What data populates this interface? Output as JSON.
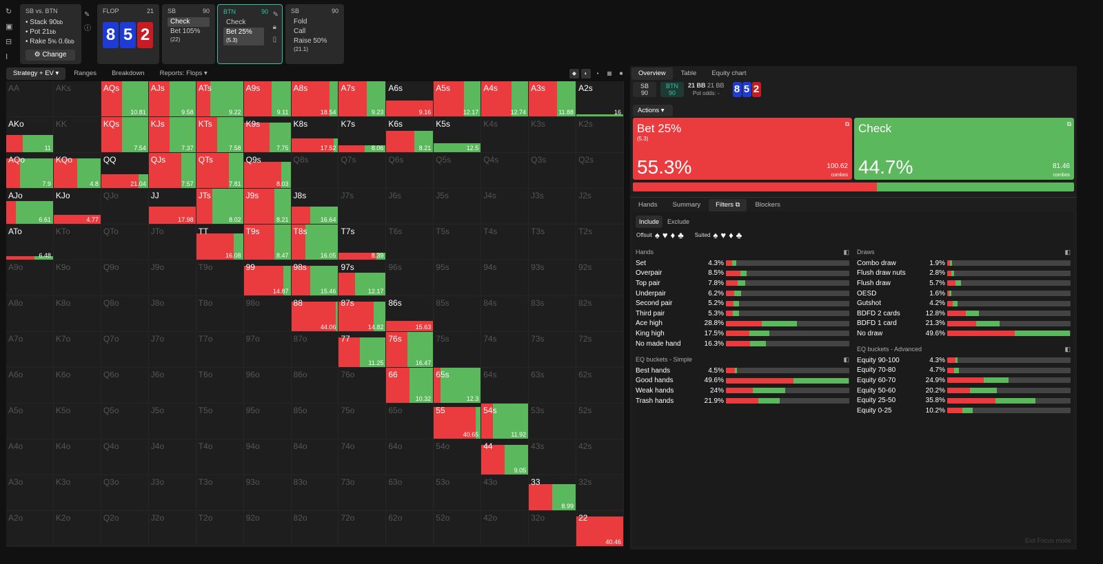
{
  "nav": {
    "spot": "SB vs. BTN",
    "stack": "Stack 90",
    "stack_u": "bb",
    "pot": "Pot 21",
    "pot_u": "bb",
    "rake": "Rake 5",
    "rake_u": "%",
    "rake_x": " 0.6",
    "rake_xu": "bb",
    "change": "Change"
  },
  "flop": {
    "label": "FLOP",
    "num": "21",
    "cards": [
      "8",
      "5",
      "2"
    ]
  },
  "sb1": {
    "label": "SB",
    "num": "90",
    "opts": [
      "Check",
      "Bet 105%"
    ],
    "opt2x": "(22)"
  },
  "btn": {
    "label": "BTN",
    "num": "90",
    "opts": [
      "Check",
      "Bet 25%"
    ],
    "opt2x": "(5.3)"
  },
  "sb2": {
    "label": "SB",
    "num": "90",
    "opts": [
      "Fold",
      "Call",
      "Raise 50%"
    ],
    "opt3x": "(21.1)"
  },
  "ltabs": [
    "Strategy + EV",
    "Ranges",
    "Breakdown",
    "Reports: Flops"
  ],
  "rtabs": [
    "Overview",
    "Table",
    "Equity chart"
  ],
  "info": {
    "sb": "SB",
    "sbv": "90",
    "btn": "BTN",
    "btnv": "90",
    "bb1": "21 BB",
    "bb2": "21 BB",
    "potodds": "Pot odds:",
    "potv": "-"
  },
  "actions_label": "Actions",
  "bet": {
    "name": "Bet 25%",
    "sub": "(5.3)",
    "pct": "55.3%",
    "combos": "100.62",
    "cl": "combos"
  },
  "chk": {
    "name": "Check",
    "pct": "44.7%",
    "combos": "81.46",
    "cl": "combos"
  },
  "ftabs": [
    "Hands",
    "Summary",
    "Filters",
    "Blockers"
  ],
  "incl": [
    "Include",
    "Exclude"
  ],
  "offsuit": "Offsuit",
  "suited": "Suited",
  "suits": [
    "♠",
    "♥",
    "♦",
    "♣"
  ],
  "hands_h": "Hands",
  "draws_h": "Draws",
  "eqs_h": "EQ buckets - Simple",
  "eqa_h": "EQ buckets - Advanced",
  "hands": [
    [
      "Set",
      "4.3%",
      4.3,
      60
    ],
    [
      "Overpair",
      "8.5%",
      8.5,
      70
    ],
    [
      "Top pair",
      "7.8%",
      7.8,
      60
    ],
    [
      "Underpair",
      "6.2%",
      6.2,
      55
    ],
    [
      "Second pair",
      "5.2%",
      5.2,
      60
    ],
    [
      "Third pair",
      "5.3%",
      5.3,
      55
    ],
    [
      "Ace high",
      "28.8%",
      28.8,
      50
    ],
    [
      "King high",
      "17.5%",
      17.5,
      55
    ],
    [
      "No made hand",
      "16.3%",
      16.3,
      60
    ]
  ],
  "draws": [
    [
      "Combo draw",
      "1.9%",
      1.9,
      60
    ],
    [
      "Flush draw nuts",
      "2.8%",
      2.8,
      55
    ],
    [
      "Flush draw",
      "5.7%",
      5.7,
      60
    ],
    [
      "OESD",
      "1.6%",
      1.6,
      60
    ],
    [
      "Gutshot",
      "4.2%",
      4.2,
      50
    ],
    [
      "BDFD 2 cards",
      "12.8%",
      12.8,
      60
    ],
    [
      "BDFD 1 card",
      "21.3%",
      21.3,
      55
    ],
    [
      "No draw",
      "49.6%",
      49.6,
      55
    ]
  ],
  "eqs": [
    [
      "Best hands",
      "4.5%",
      4.5,
      80
    ],
    [
      "Good hands",
      "49.6%",
      49.6,
      55
    ],
    [
      "Weak hands",
      "24%",
      24,
      45
    ],
    [
      "Trash hands",
      "21.9%",
      21.9,
      60
    ]
  ],
  "eqa": [
    [
      "Equity 90-100",
      "4.3%",
      4.3,
      80
    ],
    [
      "Equity 70-80",
      "4.7%",
      4.7,
      60
    ],
    [
      "Equity 60-70",
      "24.9%",
      24.9,
      60
    ],
    [
      "Equity 50-60",
      "20.2%",
      20.2,
      45
    ],
    [
      "Equity 25-50",
      "35.8%",
      35.8,
      55
    ],
    [
      "Equity 0-25",
      "10.2%",
      10.2,
      60
    ]
  ],
  "exit": "Exit Focus mode",
  "grid": [
    [
      "AA",
      0,
      0,
      ""
    ],
    [
      "AKs",
      0,
      0,
      ""
    ],
    [
      "AQs",
      1,
      0.45,
      "10.81"
    ],
    [
      "AJs",
      1,
      0.45,
      "9.58"
    ],
    [
      "ATs",
      1,
      0.3,
      "9.22"
    ],
    [
      "A9s",
      1,
      0.6,
      "9.11"
    ],
    [
      "A8s",
      1,
      0.82,
      "18.54"
    ],
    [
      "A7s",
      1,
      0.6,
      "9.23"
    ],
    [
      "A6s",
      0.45,
      1,
      "9.16"
    ],
    [
      "A5s",
      1,
      0.65,
      "12.17"
    ],
    [
      "A4s",
      1,
      0.65,
      "12.74"
    ],
    [
      "A3s",
      1,
      0.6,
      "11.88"
    ],
    [
      "A2s",
      0.05,
      0,
      "16"
    ],
    [
      "AKo",
      0.5,
      0.35,
      "11"
    ],
    [
      "KK",
      0,
      0,
      ""
    ],
    [
      "KQs",
      1,
      0.45,
      "7.54"
    ],
    [
      "KJs",
      1,
      0.45,
      "7.37"
    ],
    [
      "KTs",
      1,
      0.45,
      "7.58"
    ],
    [
      "K9s",
      0.85,
      0.55,
      "7.75"
    ],
    [
      "K8s",
      0.4,
      0.9,
      "17.52"
    ],
    [
      "K7s",
      0.2,
      0.55,
      "8.06"
    ],
    [
      "K6s",
      0.6,
      0.6,
      "8.21"
    ],
    [
      "K5s",
      0.25,
      0,
      "12.5"
    ],
    [
      "K4s",
      0,
      0,
      ""
    ],
    [
      "K3s",
      0,
      0,
      ""
    ],
    [
      "K2s",
      0,
      0,
      ""
    ],
    [
      "AQo",
      0.85,
      0.3,
      "7.9"
    ],
    [
      "KQo",
      0.85,
      0.5,
      "4.8"
    ],
    [
      "QQ",
      0.4,
      0.8,
      "21.04"
    ],
    [
      "QJs",
      1,
      0.7,
      "7.57"
    ],
    [
      "QTs",
      1,
      0.7,
      "7.81"
    ],
    [
      "Q9s",
      0.75,
      0.8,
      "8.03"
    ],
    [
      "Q8s",
      0,
      0,
      ""
    ],
    [
      "Q7s",
      0,
      0,
      ""
    ],
    [
      "Q6s",
      0,
      0,
      ""
    ],
    [
      "Q5s",
      0,
      0,
      ""
    ],
    [
      "Q4s",
      0,
      0,
      ""
    ],
    [
      "Q3s",
      0,
      0,
      ""
    ],
    [
      "Q2s",
      0,
      0,
      ""
    ],
    [
      "AJo",
      0.65,
      0.2,
      "6.61"
    ],
    [
      "KJo",
      0.25,
      1,
      "4.77"
    ],
    [
      "QJo",
      0,
      0,
      ""
    ],
    [
      "JJ",
      0.5,
      1,
      "17.98"
    ],
    [
      "JTs",
      1,
      0.35,
      "8.02"
    ],
    [
      "J9s",
      1,
      0.65,
      "8.21"
    ],
    [
      "J8s",
      0.5,
      0.4,
      "16.64"
    ],
    [
      "J7s",
      0,
      0,
      ""
    ],
    [
      "J6s",
      0,
      0,
      ""
    ],
    [
      "J5s",
      0,
      0,
      ""
    ],
    [
      "J4s",
      0,
      0,
      ""
    ],
    [
      "J3s",
      0,
      0,
      ""
    ],
    [
      "J2s",
      0,
      0,
      ""
    ],
    [
      "ATo",
      0.1,
      0.6,
      "6.48"
    ],
    [
      "KTo",
      0,
      0,
      ""
    ],
    [
      "QTo",
      0,
      0,
      ""
    ],
    [
      "JTo",
      0,
      0,
      ""
    ],
    [
      "TT",
      0.75,
      0.8,
      "16.08"
    ],
    [
      "T9s",
      1,
      0.65,
      "8.47"
    ],
    [
      "T8s",
      1,
      0.3,
      "16.05"
    ],
    [
      "T7s",
      0.2,
      0.8,
      "8.39"
    ],
    [
      "T6s",
      0,
      0,
      ""
    ],
    [
      "T5s",
      0,
      0,
      ""
    ],
    [
      "T4s",
      0,
      0,
      ""
    ],
    [
      "T3s",
      0,
      0,
      ""
    ],
    [
      "T2s",
      0,
      0,
      ""
    ],
    [
      "A9o",
      0,
      0,
      ""
    ],
    [
      "K9o",
      0,
      0,
      ""
    ],
    [
      "Q9o",
      0,
      0,
      ""
    ],
    [
      "J9o",
      0,
      0,
      ""
    ],
    [
      "T9o",
      0,
      0,
      ""
    ],
    [
      "99",
      0.85,
      0.85,
      "14.87"
    ],
    [
      "98s",
      0.85,
      0.4,
      "15.46"
    ],
    [
      "97s",
      0.65,
      0.35,
      "12.17"
    ],
    [
      "96s",
      0,
      0,
      ""
    ],
    [
      "95s",
      0,
      0,
      ""
    ],
    [
      "94s",
      0,
      0,
      ""
    ],
    [
      "93s",
      0,
      0,
      ""
    ],
    [
      "92s",
      0,
      0,
      ""
    ],
    [
      "A8o",
      0,
      0,
      ""
    ],
    [
      "K8o",
      0,
      0,
      ""
    ],
    [
      "Q8o",
      0,
      0,
      ""
    ],
    [
      "J8o",
      0,
      0,
      ""
    ],
    [
      "T8o",
      0,
      0,
      ""
    ],
    [
      "98o",
      0,
      0,
      ""
    ],
    [
      "88",
      0.85,
      0.95,
      "44.06"
    ],
    [
      "87s",
      0.85,
      0.75,
      "14.82"
    ],
    [
      "86s",
      0.3,
      1,
      "15.63"
    ],
    [
      "85s",
      0,
      0,
      ""
    ],
    [
      "84s",
      0,
      0,
      ""
    ],
    [
      "83s",
      0,
      0,
      ""
    ],
    [
      "82s",
      0,
      0,
      ""
    ],
    [
      "A7o",
      0,
      0,
      ""
    ],
    [
      "K7o",
      0,
      0,
      ""
    ],
    [
      "Q7o",
      0,
      0,
      ""
    ],
    [
      "J7o",
      0,
      0,
      ""
    ],
    [
      "T7o",
      0,
      0,
      ""
    ],
    [
      "97o",
      0,
      0,
      ""
    ],
    [
      "87o",
      0,
      0,
      ""
    ],
    [
      "77",
      0.85,
      0.45,
      "11.25"
    ],
    [
      "76s",
      1,
      0.45,
      "16.47"
    ],
    [
      "75s",
      0,
      0,
      ""
    ],
    [
      "74s",
      0,
      0,
      ""
    ],
    [
      "73s",
      0,
      0,
      ""
    ],
    [
      "72s",
      0,
      0,
      ""
    ],
    [
      "A6o",
      0,
      0,
      ""
    ],
    [
      "K6o",
      0,
      0,
      ""
    ],
    [
      "Q6o",
      0,
      0,
      ""
    ],
    [
      "J6o",
      0,
      0,
      ""
    ],
    [
      "T6o",
      0,
      0,
      ""
    ],
    [
      "96o",
      0,
      0,
      ""
    ],
    [
      "86o",
      0,
      0,
      ""
    ],
    [
      "76o",
      0,
      0,
      ""
    ],
    [
      "66",
      1,
      0.5,
      "10.32"
    ],
    [
      "65s",
      1,
      0.15,
      "12.3"
    ],
    [
      "64s",
      0,
      0,
      ""
    ],
    [
      "63s",
      0,
      0,
      ""
    ],
    [
      "62s",
      0,
      0,
      ""
    ],
    [
      "A5o",
      0,
      0,
      ""
    ],
    [
      "K5o",
      0,
      0,
      ""
    ],
    [
      "Q5o",
      0,
      0,
      ""
    ],
    [
      "J5o",
      0,
      0,
      ""
    ],
    [
      "T5o",
      0,
      0,
      ""
    ],
    [
      "95o",
      0,
      0,
      ""
    ],
    [
      "85o",
      0,
      0,
      ""
    ],
    [
      "75o",
      0,
      0,
      ""
    ],
    [
      "65o",
      0,
      0,
      ""
    ],
    [
      "55",
      0.9,
      0.9,
      "40.65"
    ],
    [
      "54s",
      1,
      0.25,
      "11.92"
    ],
    [
      "53s",
      0,
      0,
      ""
    ],
    [
      "52s",
      0,
      0,
      ""
    ],
    [
      "A4o",
      0,
      0,
      ""
    ],
    [
      "K4o",
      0,
      0,
      ""
    ],
    [
      "Q4o",
      0,
      0,
      ""
    ],
    [
      "J4o",
      0,
      0,
      ""
    ],
    [
      "T4o",
      0,
      0,
      ""
    ],
    [
      "94o",
      0,
      0,
      ""
    ],
    [
      "84o",
      0,
      0,
      ""
    ],
    [
      "74o",
      0,
      0,
      ""
    ],
    [
      "64o",
      0,
      0,
      ""
    ],
    [
      "54o",
      0,
      0,
      ""
    ],
    [
      "44",
      0.85,
      0.5,
      "9.05"
    ],
    [
      "43s",
      0,
      0,
      ""
    ],
    [
      "42s",
      0,
      0,
      ""
    ],
    [
      "A3o",
      0,
      0,
      ""
    ],
    [
      "K3o",
      0,
      0,
      ""
    ],
    [
      "Q3o",
      0,
      0,
      ""
    ],
    [
      "J3o",
      0,
      0,
      ""
    ],
    [
      "T3o",
      0,
      0,
      ""
    ],
    [
      "93o",
      0,
      0,
      ""
    ],
    [
      "83o",
      0,
      0,
      ""
    ],
    [
      "73o",
      0,
      0,
      ""
    ],
    [
      "63o",
      0,
      0,
      ""
    ],
    [
      "53o",
      0,
      0,
      ""
    ],
    [
      "43o",
      0,
      0,
      ""
    ],
    [
      "33",
      0.75,
      0.5,
      "8.99"
    ],
    [
      "32s",
      0,
      0,
      ""
    ],
    [
      "A2o",
      0,
      0,
      ""
    ],
    [
      "K2o",
      0,
      0,
      ""
    ],
    [
      "Q2o",
      0,
      0,
      ""
    ],
    [
      "J2o",
      0,
      0,
      ""
    ],
    [
      "T2o",
      0,
      0,
      ""
    ],
    [
      "92o",
      0,
      0,
      ""
    ],
    [
      "82o",
      0,
      0,
      ""
    ],
    [
      "72o",
      0,
      0,
      ""
    ],
    [
      "62o",
      0,
      0,
      ""
    ],
    [
      "52o",
      0,
      0,
      ""
    ],
    [
      "42o",
      0,
      0,
      ""
    ],
    [
      "32o",
      0,
      0,
      ""
    ],
    [
      "22",
      0.85,
      1,
      "40.46"
    ]
  ]
}
